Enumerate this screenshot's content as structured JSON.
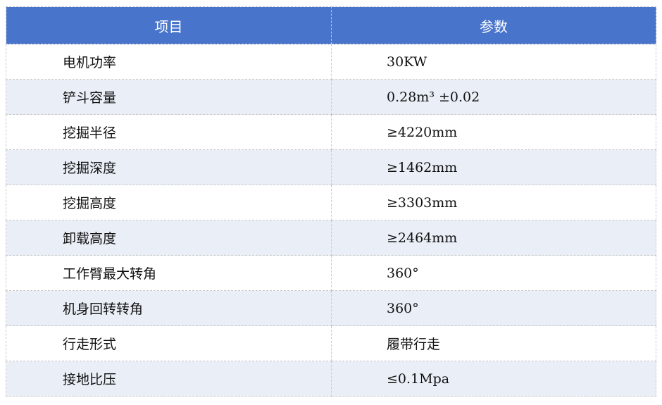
{
  "table": {
    "headers": [
      "项目",
      "参数"
    ],
    "rows": [
      [
        "电机功率",
        "30KW"
      ],
      [
        "铲斗容量",
        "0.28m³ ±0.02"
      ],
      [
        "挖掘半径",
        "≥4220mm"
      ],
      [
        "挖掘深度",
        "≥1462mm"
      ],
      [
        "挖掘高度",
        "≥3303mm"
      ],
      [
        "卸载高度",
        "≥2464mm"
      ],
      [
        "工作臂最大转角",
        "360°"
      ],
      [
        "机身回转转角",
        "360°"
      ],
      [
        "行走形式",
        "履带行走"
      ],
      [
        "接地比压",
        "≤0.1Mpa"
      ]
    ]
  },
  "colors": {
    "header_bg": "#4874cb",
    "alt_row_bg": "#eaeff7"
  }
}
